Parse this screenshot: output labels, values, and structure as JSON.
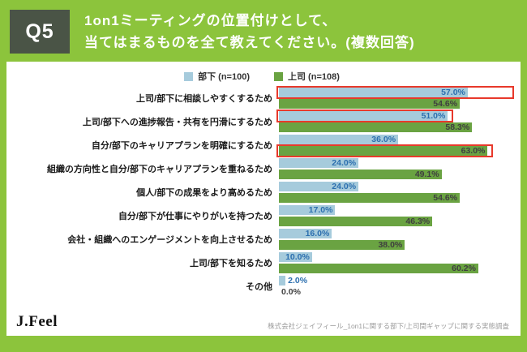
{
  "header": {
    "question_number": "Q5",
    "title_line1": "1on1ミーティングの位置付けとして、",
    "title_line2": "当てはまるものを全て教えてください。(複数回答)"
  },
  "legend": [
    {
      "label": "部下 (n=100)",
      "color": "#A6CBDC"
    },
    {
      "label": "上司 (n=108)",
      "color": "#6AA342"
    }
  ],
  "chart_data": {
    "type": "bar",
    "orientation": "horizontal",
    "title": "1on1ミーティングの位置付け(複数回答)",
    "categories": [
      "上司/部下に相談しやすくするため",
      "上司/部下への進捗報告・共有を円滑にするため",
      "自分/部下のキャリアプランを明確にするため",
      "組織の方向性と自分/部下のキャリアプランを重ねるため",
      "個人/部下の成果をより高めるため",
      "自分/部下が仕事にやりがいを持つため",
      "会社・組織へのエンゲージメントを向上させるため",
      "上司/部下を知るため",
      "その他"
    ],
    "series": [
      {
        "name": "部下 (n=100)",
        "color": "#A6CBDC",
        "values": [
          57.0,
          51.0,
          36.0,
          24.0,
          24.0,
          17.0,
          16.0,
          10.0,
          2.0
        ]
      },
      {
        "name": "上司 (n=108)",
        "color": "#6AA342",
        "values": [
          54.6,
          58.3,
          63.0,
          49.1,
          54.6,
          46.3,
          38.0,
          60.2,
          0.0
        ]
      }
    ],
    "value_suffix": "%",
    "xlim": [
      0,
      70
    ],
    "grid": false,
    "legend_position": "top",
    "highlights": [
      {
        "category_index": 0,
        "series_index": 0,
        "full_width": true
      },
      {
        "category_index": 1,
        "series_index": 0,
        "full_width": false
      },
      {
        "category_index": 2,
        "series_index": 1,
        "full_width": false
      }
    ]
  },
  "footer": {
    "logo_text": "J.Feel",
    "source_note": "株式会社ジェイフィール_1on1に関する部下/上司間ギャップに関する実態調査"
  },
  "colors": {
    "page_background": "#8CC43C",
    "question_box": "#4A5446",
    "card_background": "#FFFFFF",
    "subordinate_bar": "#A6CBDC",
    "boss_bar": "#6AA342",
    "subordinate_value_text": "#2C6FAF",
    "boss_value_text": "#3F3F3F",
    "highlight_red": "#E8392B",
    "source_text": "#9B9B9B"
  }
}
